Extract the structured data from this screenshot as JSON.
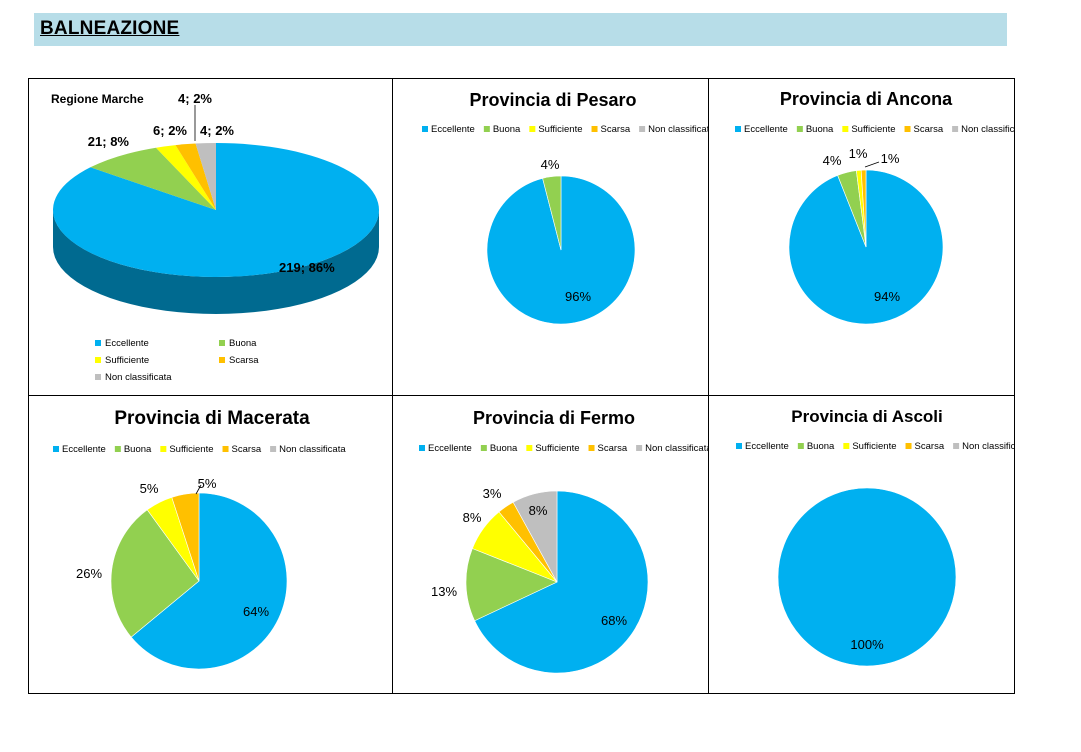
{
  "header": {
    "title": "BALNEAZIONE"
  },
  "colors": {
    "Eccellente": "#00b0f0",
    "Buona": "#92d050",
    "Sufficiente": "#ffff00",
    "Scarsa": "#ffc000",
    "Non classificata": "#bfbfbf"
  },
  "legend": [
    "Eccellente",
    "Buona",
    "Sufficiente",
    "Scarsa",
    "Non classificata"
  ],
  "chart_data": [
    {
      "type": "pie",
      "style": "3d",
      "title": "Regione Marche",
      "legend_position": "bottom",
      "slices": [
        {
          "category": "Eccellente",
          "value": 219,
          "percent": 86,
          "label": "219; 86%"
        },
        {
          "category": "Buona",
          "value": 21,
          "percent": 8,
          "label": "21; 8%"
        },
        {
          "category": "Sufficiente",
          "value": 6,
          "percent": 2,
          "label": "6; 2%"
        },
        {
          "category": "Scarsa",
          "value": 4,
          "percent": 2,
          "label": "4; 2%"
        },
        {
          "category": "Non classificata",
          "value": 4,
          "percent": 2,
          "label": "4; 2%"
        }
      ]
    },
    {
      "type": "pie",
      "title": "Provincia di Pesaro",
      "legend_position": "top",
      "slices": [
        {
          "category": "Eccellente",
          "percent": 96,
          "label": "96%"
        },
        {
          "category": "Buona",
          "percent": 4,
          "label": "4%"
        }
      ]
    },
    {
      "type": "pie",
      "title": "Provincia di Ancona",
      "legend_position": "top",
      "slices": [
        {
          "category": "Eccellente",
          "percent": 94,
          "label": "94%"
        },
        {
          "category": "Buona",
          "percent": 4,
          "label": "4%"
        },
        {
          "category": "Sufficiente",
          "percent": 1,
          "label": "1%"
        },
        {
          "category": "Scarsa",
          "percent": 1,
          "label": "1%"
        }
      ]
    },
    {
      "type": "pie",
      "title": "Provincia di Macerata",
      "legend_position": "top",
      "slices": [
        {
          "category": "Eccellente",
          "percent": 64,
          "label": "64%"
        },
        {
          "category": "Buona",
          "percent": 26,
          "label": "26%"
        },
        {
          "category": "Sufficiente",
          "percent": 5,
          "label": "5%"
        },
        {
          "category": "Scarsa",
          "percent": 5,
          "label": "5%"
        }
      ]
    },
    {
      "type": "pie",
      "title": "Provincia di Fermo",
      "legend_position": "top",
      "slices": [
        {
          "category": "Eccellente",
          "percent": 68,
          "label": "68%"
        },
        {
          "category": "Buona",
          "percent": 13,
          "label": "13%"
        },
        {
          "category": "Sufficiente",
          "percent": 8,
          "label": "8%"
        },
        {
          "category": "Scarsa",
          "percent": 3,
          "label": "3%"
        },
        {
          "category": "Non classificata",
          "percent": 8,
          "label": "8%"
        }
      ]
    },
    {
      "type": "pie",
      "title": "Provincia di Ascoli",
      "legend_position": "top",
      "slices": [
        {
          "category": "Eccellente",
          "percent": 100,
          "label": "100%"
        }
      ]
    }
  ]
}
